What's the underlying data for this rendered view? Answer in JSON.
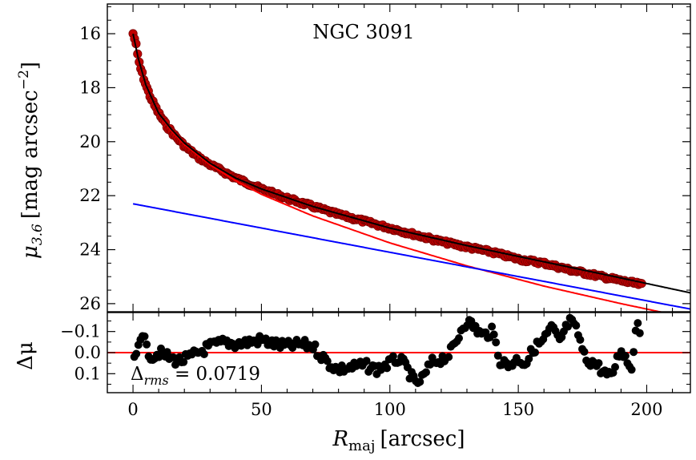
{
  "chart_data": [
    {
      "type": "scatter",
      "panel": "profile",
      "title": "NGC 3091",
      "xlabel_main": "R",
      "xlabel_sub": "maj",
      "xlabel_unit": "[arcsec]",
      "ylabel_main": "μ",
      "ylabel_sub": "3.6",
      "ylabel_unit": "[mag arcsec",
      "ylabel_exp": "−2",
      "ylabel_close": "]",
      "xlim": [
        -10,
        217
      ],
      "ylim": [
        26.3,
        14.9
      ],
      "x_ticks": [
        0,
        50,
        100,
        150,
        200
      ],
      "x_tick_labels": [
        "0",
        "50",
        "100",
        "150",
        "200"
      ],
      "y_ticks": [
        16,
        18,
        20,
        22,
        24,
        26
      ],
      "y_tick_labels": [
        "16",
        "18",
        "20",
        "22",
        "24",
        "26"
      ],
      "y_minor_step": 0.5,
      "x_minor_step": 10,
      "series": [
        {
          "name": "observed profile",
          "kind": "points",
          "color": "#c00000",
          "x": [
            0,
            1,
            2,
            3,
            5,
            7,
            10,
            13,
            16,
            20,
            25,
            30,
            40,
            50,
            60,
            70,
            80,
            90,
            100,
            110,
            120,
            130,
            140,
            150,
            160,
            170,
            180,
            190,
            198
          ],
          "y": [
            16.0,
            16.3,
            16.9,
            17.3,
            17.9,
            18.4,
            18.95,
            19.4,
            19.75,
            20.15,
            20.55,
            20.85,
            21.35,
            21.75,
            22.1,
            22.4,
            22.7,
            22.95,
            23.2,
            23.45,
            23.7,
            23.9,
            24.1,
            24.35,
            24.5,
            24.75,
            24.95,
            25.15,
            25.3
          ]
        },
        {
          "name": "bulge (Sersic)",
          "kind": "line",
          "color": "#ff0000",
          "x": [
            0,
            2,
            5,
            10,
            15,
            20,
            30,
            40,
            50,
            70,
            100,
            130,
            160,
            190,
            215
          ],
          "y": [
            16.0,
            16.9,
            17.9,
            18.95,
            19.6,
            20.1,
            20.85,
            21.45,
            21.95,
            22.75,
            23.75,
            24.6,
            25.35,
            26.0,
            26.5
          ]
        },
        {
          "name": "disc (exponential)",
          "kind": "line",
          "color": "#0000ff",
          "x": [
            0,
            217
          ],
          "y": [
            22.3,
            26.2
          ]
        },
        {
          "name": "total model",
          "kind": "line",
          "color": "#000000",
          "x": [
            0,
            2,
            5,
            10,
            15,
            20,
            30,
            40,
            50,
            70,
            100,
            130,
            160,
            190,
            217
          ],
          "y": [
            16.0,
            16.9,
            17.9,
            18.95,
            19.55,
            20.05,
            20.8,
            21.35,
            21.75,
            22.4,
            23.2,
            23.85,
            24.45,
            25.05,
            25.6
          ]
        }
      ]
    },
    {
      "type": "scatter",
      "panel": "residuals",
      "ylabel": "Δμ",
      "annotation_symbol": "Δ",
      "annotation_sub": "rms",
      "annotation_value": " = 0.0719",
      "xlim": [
        -10,
        217
      ],
      "ylim": [
        0.19,
        -0.19
      ],
      "y_ticks": [
        -0.1,
        0.0,
        0.1
      ],
      "y_tick_labels": [
        "−0.1",
        "0.0",
        "0.1"
      ],
      "zero_line_color": "#ff0000",
      "series": [
        {
          "name": "residuals",
          "kind": "points",
          "color": "#000000",
          "x": [
            1,
            2,
            3,
            4,
            5,
            6,
            8,
            10,
            12,
            15,
            18,
            21,
            24,
            27,
            30,
            33,
            36,
            40,
            45,
            50,
            55,
            60,
            65,
            70,
            73,
            76,
            80,
            85,
            90,
            95,
            100,
            103,
            106,
            110,
            113,
            116,
            120,
            123,
            126,
            128,
            130,
            133,
            136,
            140,
            143,
            146,
            150,
            153,
            156,
            160,
            163,
            166,
            170,
            173,
            176,
            180,
            183,
            186,
            190,
            194,
            196,
            198
          ],
          "y": [
            0.03,
            -0.04,
            -0.09,
            -0.1,
            -0.02,
            0.0,
            0.02,
            0.0,
            0.01,
            0.03,
            0.04,
            0.03,
            0.01,
            -0.01,
            -0.03,
            -0.04,
            -0.05,
            -0.04,
            -0.05,
            -0.06,
            -0.04,
            -0.03,
            -0.04,
            -0.03,
            0.01,
            0.05,
            0.08,
            0.07,
            0.06,
            0.08,
            0.05,
            0.03,
            0.06,
            0.15,
            0.12,
            0.05,
            0.03,
            0.01,
            -0.05,
            -0.12,
            -0.15,
            -0.12,
            -0.08,
            -0.1,
            0.04,
            0.06,
            0.03,
            0.05,
            -0.02,
            -0.06,
            -0.12,
            -0.05,
            -0.15,
            -0.1,
            0.03,
            0.05,
            0.09,
            0.12,
            -0.02,
            0.08,
            -0.15,
            -0.09
          ]
        }
      ]
    }
  ]
}
